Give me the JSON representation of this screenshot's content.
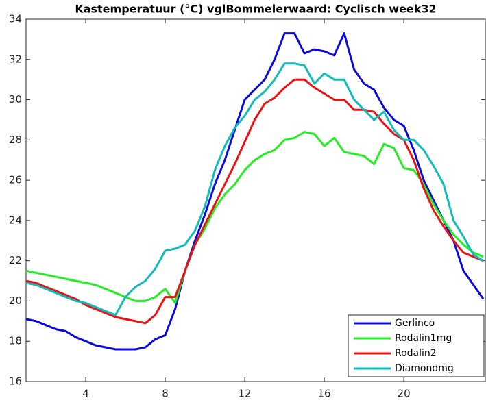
{
  "chart_data": {
    "type": "line",
    "title": "Kastemperatuur (°C) vglBommelerwaard: Cyclisch week32",
    "x": [
      1,
      1.5,
      2,
      2.5,
      3,
      3.5,
      4,
      4.5,
      5,
      5.5,
      6,
      6.5,
      7,
      7.5,
      8,
      8.5,
      9,
      9.5,
      10,
      10.5,
      11,
      11.5,
      12,
      12.5,
      13,
      13.5,
      14,
      14.5,
      15,
      15.5,
      16,
      16.5,
      17,
      17.5,
      18,
      18.5,
      19,
      19.5,
      20,
      20.5,
      21,
      21.5,
      22,
      22.5,
      23,
      23.5,
      24
    ],
    "series": [
      {
        "name": "Gerlinco",
        "color": "#0a0adc",
        "values": [
          19.1,
          19.0,
          18.8,
          18.6,
          18.5,
          18.2,
          18.0,
          17.8,
          17.7,
          17.6,
          17.6,
          17.6,
          17.7,
          18.1,
          18.3,
          19.6,
          21.5,
          23.0,
          24.3,
          25.8,
          27.0,
          28.5,
          30.0,
          30.5,
          31.0,
          32.0,
          33.3,
          33.3,
          32.3,
          32.5,
          32.4,
          32.2,
          33.3,
          31.5,
          30.8,
          30.5,
          29.6,
          29.0,
          28.7,
          27.5,
          26.0,
          25.0,
          24.0,
          23.0,
          21.5,
          20.8,
          20.1
        ]
      },
      {
        "name": "Rodalin1mg",
        "color": "#22ee22",
        "values": [
          21.5,
          21.4,
          21.3,
          21.2,
          21.1,
          21.0,
          20.9,
          20.8,
          20.6,
          20.4,
          20.2,
          20.0,
          20.0,
          20.2,
          20.6,
          19.9,
          21.5,
          22.8,
          23.6,
          24.6,
          25.3,
          25.8,
          26.5,
          27.0,
          27.3,
          27.5,
          28.0,
          28.1,
          28.4,
          28.3,
          27.7,
          28.1,
          27.4,
          27.3,
          27.2,
          26.8,
          27.8,
          27.6,
          26.6,
          26.5,
          25.8,
          24.8,
          24.0,
          23.3,
          22.8,
          22.4,
          22.2
        ]
      },
      {
        "name": "Rodalin2",
        "color": "#ee1111",
        "values": [
          21.0,
          20.9,
          20.7,
          20.5,
          20.3,
          20.1,
          19.8,
          19.6,
          19.4,
          19.2,
          19.1,
          19.0,
          18.9,
          19.3,
          20.2,
          20.2,
          21.5,
          22.8,
          23.8,
          24.8,
          25.8,
          26.8,
          27.9,
          29.0,
          29.8,
          30.1,
          30.6,
          31.0,
          31.0,
          30.6,
          30.3,
          30.0,
          30.0,
          29.5,
          29.5,
          29.4,
          28.8,
          28.3,
          28.0,
          27.0,
          25.6,
          24.5,
          23.7,
          23.0,
          22.4,
          22.2,
          22.0
        ]
      },
      {
        "name": "Diamondmg",
        "color": "#11bbbb",
        "values": [
          20.9,
          20.8,
          20.6,
          20.4,
          20.2,
          20.0,
          19.9,
          19.7,
          19.5,
          19.3,
          20.2,
          20.7,
          21.0,
          21.6,
          22.5,
          22.6,
          22.8,
          23.5,
          24.7,
          26.5,
          27.7,
          28.6,
          29.2,
          30.0,
          30.4,
          31.0,
          31.8,
          31.8,
          31.7,
          30.8,
          31.3,
          31.0,
          31.0,
          30.0,
          29.5,
          29.0,
          29.4,
          28.5,
          28.0,
          28.0,
          27.5,
          26.7,
          25.8,
          24.0,
          23.2,
          22.3,
          22.0
        ]
      }
    ],
    "xlim": [
      1,
      24.1
    ],
    "xticks": [
      4,
      8,
      12,
      16,
      20
    ],
    "ylim": [
      16,
      34
    ],
    "yticks": [
      16,
      18,
      20,
      22,
      24,
      26,
      28,
      30,
      32,
      34
    ],
    "grid": false,
    "legend": "lower right"
  }
}
